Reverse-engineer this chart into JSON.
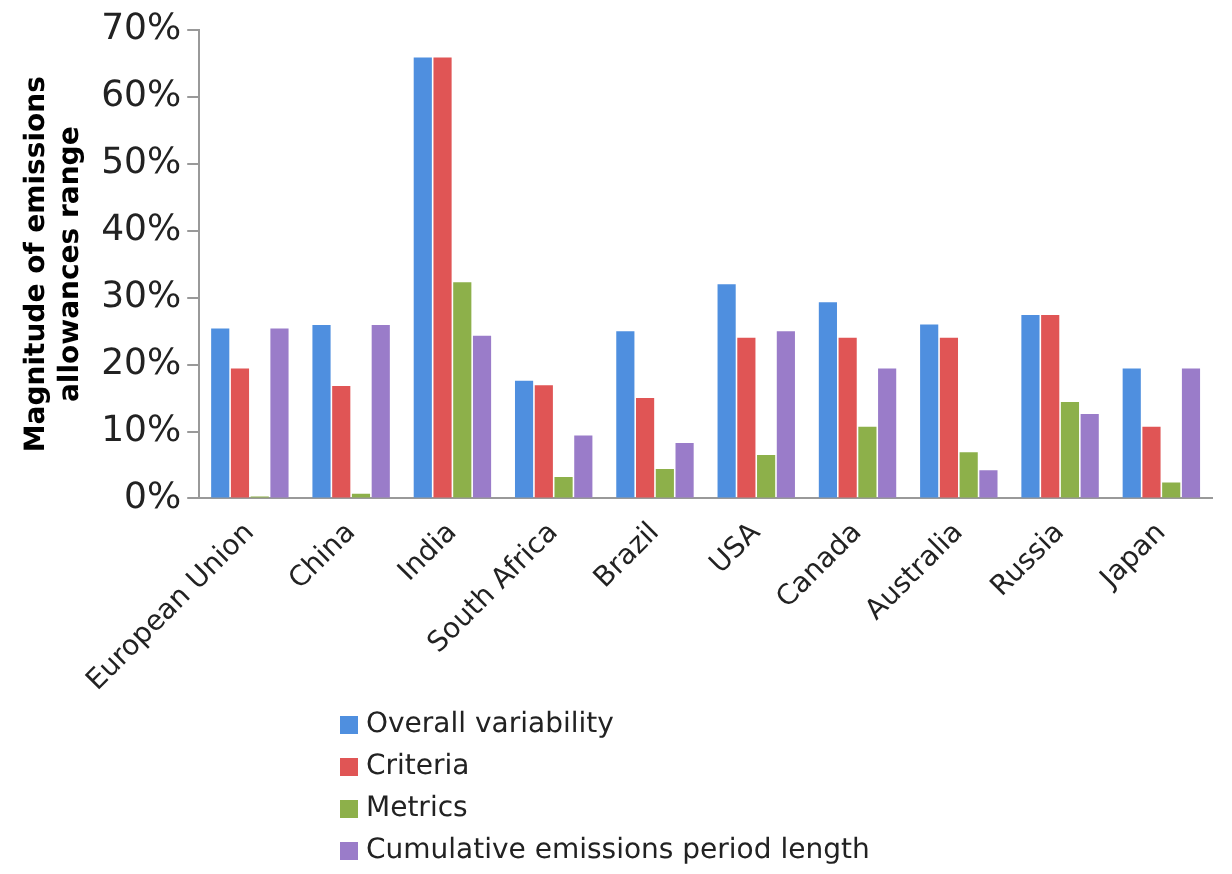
{
  "chart_data": {
    "type": "bar",
    "ylabel": "Magnitude of emissions allowances range",
    "categories": [
      "European Union",
      "China",
      "India",
      "South Africa",
      "Brazil",
      "USA",
      "Canada",
      "Australia",
      "Russia",
      "Japan"
    ],
    "series": [
      {
        "name": "Overall variability",
        "color": "#4f8fdf",
        "values": [
          25.4,
          25.9,
          65.9,
          17.6,
          25,
          32,
          29.3,
          26,
          27.4,
          19.4
        ]
      },
      {
        "name": "Criteria",
        "color": "#e05555",
        "values": [
          19.4,
          16.8,
          65.9,
          16.9,
          15,
          24,
          24,
          24,
          27.4,
          10.7
        ]
      },
      {
        "name": "Metrics",
        "color": "#8db04a",
        "values": [
          0.3,
          0.7,
          32.3,
          3.2,
          4.4,
          6.5,
          10.7,
          6.9,
          14.4,
          2.4
        ]
      },
      {
        "name": "Cumulative emissions period length",
        "color": "#9a7cc9",
        "values": [
          25.4,
          25.9,
          24.3,
          9.4,
          8.3,
          25,
          19.4,
          4.2,
          12.6,
          19.4
        ]
      }
    ],
    "ylim": [
      0,
      70
    ],
    "yticks": [
      {
        "value": 0,
        "label": "0%"
      },
      {
        "value": 10,
        "label": "10%"
      },
      {
        "value": 20,
        "label": "20%"
      },
      {
        "value": 30,
        "label": "30%"
      },
      {
        "value": 40,
        "label": "40%"
      },
      {
        "value": 50,
        "label": "50%"
      },
      {
        "value": 60,
        "label": "60%"
      },
      {
        "value": 70,
        "label": "70%"
      }
    ],
    "grid": false,
    "legend": "bottom"
  }
}
